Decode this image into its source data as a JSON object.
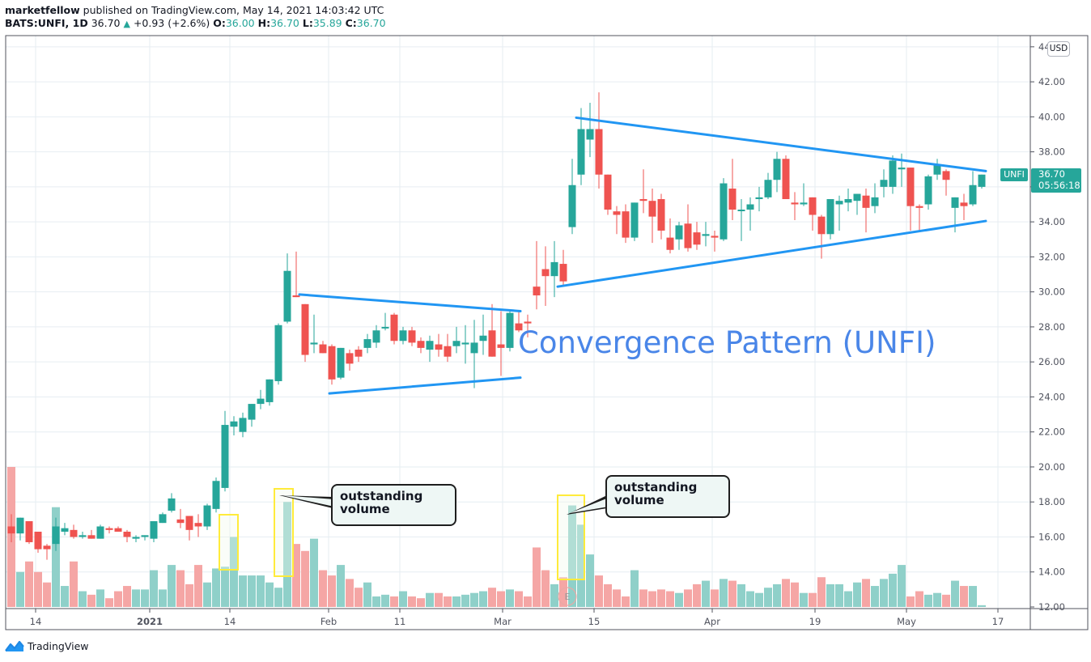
{
  "header": {
    "publisher": "marketfellow",
    "published_text": " published on TradingView.com, May 14, 2021 14:03:42 UTC",
    "symbol": "BATS:UNFI, 1D",
    "last": "36.70",
    "change_arrow": "▲",
    "change": "+0.93 (+2.6%)",
    "o_label": "O:",
    "o": "36.00",
    "h_label": "H:",
    "h": "36.70",
    "l_label": "L:",
    "l": "35.89",
    "c_label": "C:",
    "c": "36.70"
  },
  "price_axis": {
    "currency": "USD",
    "ticks": [
      "44",
      "42.00",
      "40.00",
      "38.00",
      "36.00",
      "34.00",
      "32.00",
      "30.00",
      "28.00",
      "26.00",
      "24.00",
      "22.00",
      "20.00",
      "18.00",
      "16.00",
      "14.00",
      "12.00"
    ],
    "last_price": "36.70",
    "countdown": "05:56:18",
    "ticker_label": "UNFI"
  },
  "time_axis": {
    "labels": [
      {
        "text": "14",
        "x": 44
      },
      {
        "text": "2021",
        "x": 185,
        "bold": true
      },
      {
        "text": "14",
        "x": 284
      },
      {
        "text": "Feb",
        "x": 406
      },
      {
        "text": "11",
        "x": 494
      },
      {
        "text": "Mar",
        "x": 621
      },
      {
        "text": "15",
        "x": 734
      },
      {
        "text": "Apr",
        "x": 880
      },
      {
        "text": "19",
        "x": 1007
      },
      {
        "text": "May",
        "x": 1120
      },
      {
        "text": "17",
        "x": 1233
      }
    ]
  },
  "annotations": {
    "title": "Convergence Pattern (UNFI)",
    "callout1": "outstanding volume",
    "callout2": "outstanding volume",
    "earnings_marker": "E"
  },
  "footer": {
    "brand": "TradingView"
  },
  "colors": {
    "up": "#26a69a",
    "down": "#ef5350",
    "up_volume": "#8fd0c9",
    "down_volume": "#f5a6a5",
    "trendline": "#2196f3",
    "annotation_text": "#4a86e8",
    "highlight_box": "#ffeb3b",
    "grid": "#e6edf2"
  },
  "chart_data": {
    "type": "candlestick",
    "title": "BATS:UNFI, 1D",
    "xlabel": "",
    "ylabel": "Price (USD)",
    "ylim": [
      12,
      44
    ],
    "grid": true,
    "x_ticks": [
      "14",
      "2021",
      "14",
      "Feb",
      "11",
      "Mar",
      "15",
      "Apr",
      "19",
      "May",
      "17"
    ],
    "y_ticks": [
      12,
      14,
      16,
      18,
      20,
      22,
      24,
      26,
      28,
      30,
      32,
      34,
      36,
      38,
      40,
      42
    ],
    "annotations": [
      "Convergence Pattern (UNFI)",
      "outstanding volume (late Jan)",
      "outstanding volume (mid Mar)",
      "E (earnings marker)"
    ],
    "candles": [
      {
        "x": 14,
        "o": 16.6,
        "h": 17.3,
        "l": 15.7,
        "c": 16.2,
        "v": 20.0
      },
      {
        "x": 25,
        "o": 16.2,
        "h": 17.1,
        "l": 15.8,
        "c": 17.1,
        "v": 14.0
      },
      {
        "x": 36,
        "o": 16.9,
        "h": 16.9,
        "l": 15.6,
        "c": 15.7,
        "v": 14.6
      },
      {
        "x": 47,
        "o": 16.3,
        "h": 16.3,
        "l": 15.1,
        "c": 15.3,
        "v": 14.0
      },
      {
        "x": 58,
        "o": 15.5,
        "h": 15.6,
        "l": 14.7,
        "c": 15.3,
        "v": 13.4
      },
      {
        "x": 69,
        "o": 15.6,
        "h": 17.1,
        "l": 15.2,
        "c": 16.6,
        "v": 17.7
      },
      {
        "x": 80,
        "o": 16.3,
        "h": 16.8,
        "l": 16.1,
        "c": 16.5,
        "v": 13.2
      },
      {
        "x": 91,
        "o": 16.4,
        "h": 16.7,
        "l": 15.9,
        "c": 16.0,
        "v": 14.6
      },
      {
        "x": 102,
        "o": 16.0,
        "h": 16.3,
        "l": 15.9,
        "c": 16.1,
        "v": 12.9
      },
      {
        "x": 113,
        "o": 16.1,
        "h": 16.4,
        "l": 16.0,
        "c": 15.9,
        "v": 12.7
      },
      {
        "x": 124,
        "o": 15.9,
        "h": 16.7,
        "l": 15.9,
        "c": 16.6,
        "v": 13.0
      },
      {
        "x": 135,
        "o": 16.5,
        "h": 16.6,
        "l": 16.2,
        "c": 16.4,
        "v": 12.5
      },
      {
        "x": 146,
        "o": 16.5,
        "h": 16.6,
        "l": 16.3,
        "c": 16.3,
        "v": 12.9
      },
      {
        "x": 157,
        "o": 16.3,
        "h": 16.4,
        "l": 15.7,
        "c": 16.0,
        "v": 13.2
      },
      {
        "x": 168,
        "o": 15.9,
        "h": 16.1,
        "l": 15.7,
        "c": 16.0,
        "v": 13.0
      },
      {
        "x": 179,
        "o": 16.0,
        "h": 16.1,
        "l": 15.8,
        "c": 16.1,
        "v": 13.0
      },
      {
        "x": 190,
        "o": 15.9,
        "h": 16.9,
        "l": 15.7,
        "c": 16.9,
        "v": 14.1
      },
      {
        "x": 201,
        "o": 16.8,
        "h": 17.4,
        "l": 16.8,
        "c": 17.3,
        "v": 13.0
      },
      {
        "x": 212,
        "o": 17.5,
        "h": 18.5,
        "l": 17.4,
        "c": 18.2,
        "v": 14.4
      },
      {
        "x": 223,
        "o": 17.0,
        "h": 17.6,
        "l": 16.5,
        "c": 16.8,
        "v": 14.1
      },
      {
        "x": 234,
        "o": 17.2,
        "h": 17.2,
        "l": 15.8,
        "c": 16.4,
        "v": 13.3
      },
      {
        "x": 245,
        "o": 16.8,
        "h": 17.3,
        "l": 16.0,
        "c": 16.6,
        "v": 14.4
      },
      {
        "x": 256,
        "o": 16.6,
        "h": 17.9,
        "l": 16.4,
        "c": 17.8,
        "v": 13.4
      },
      {
        "x": 267,
        "o": 17.6,
        "h": 19.4,
        "l": 17.4,
        "c": 19.2,
        "v": 14.2
      },
      {
        "x": 278,
        "o": 18.8,
        "h": 23.2,
        "l": 18.6,
        "c": 22.4,
        "v": 14.3
      },
      {
        "x": 289,
        "o": 22.3,
        "h": 22.9,
        "l": 21.8,
        "c": 22.6,
        "v": 16.0
      },
      {
        "x": 300,
        "o": 22.0,
        "h": 23.1,
        "l": 21.7,
        "c": 22.8,
        "v": 13.8
      },
      {
        "x": 311,
        "o": 22.7,
        "h": 23.6,
        "l": 22.3,
        "c": 23.6,
        "v": 13.8
      },
      {
        "x": 322,
        "o": 23.6,
        "h": 24.4,
        "l": 23.3,
        "c": 23.9,
        "v": 13.8
      },
      {
        "x": 333,
        "o": 23.7,
        "h": 24.0,
        "l": 23.5,
        "c": 25.0,
        "v": 13.4
      },
      {
        "x": 344,
        "o": 24.9,
        "h": 28.2,
        "l": 24.7,
        "c": 28.1,
        "v": 13.1
      },
      {
        "x": 355,
        "o": 28.3,
        "h": 32.2,
        "l": 28.2,
        "c": 31.2,
        "v": 18.0
      },
      {
        "x": 366,
        "o": 29.8,
        "h": 32.3,
        "l": 29.7,
        "c": 29.7,
        "v": 15.6
      },
      {
        "x": 377,
        "o": 29.3,
        "h": 29.3,
        "l": 26.0,
        "c": 26.4,
        "v": 15.2
      },
      {
        "x": 388,
        "o": 27.0,
        "h": 28.7,
        "l": 26.5,
        "c": 27.1,
        "v": 15.9
      },
      {
        "x": 399,
        "o": 27.0,
        "h": 27.2,
        "l": 26.5,
        "c": 26.5,
        "v": 14.1
      },
      {
        "x": 410,
        "o": 26.9,
        "h": 27.0,
        "l": 24.7,
        "c": 25.0,
        "v": 13.8
      },
      {
        "x": 421,
        "o": 25.1,
        "h": 26.8,
        "l": 25.0,
        "c": 26.8,
        "v": 14.4
      },
      {
        "x": 432,
        "o": 26.5,
        "h": 26.7,
        "l": 25.5,
        "c": 25.9,
        "v": 13.6
      },
      {
        "x": 443,
        "o": 26.7,
        "h": 26.9,
        "l": 26.0,
        "c": 26.3,
        "v": 13.1
      },
      {
        "x": 454,
        "o": 26.8,
        "h": 27.6,
        "l": 26.5,
        "c": 27.3,
        "v": 13.4
      },
      {
        "x": 465,
        "o": 27.1,
        "h": 28.1,
        "l": 26.8,
        "c": 27.8,
        "v": 12.6
      },
      {
        "x": 476,
        "o": 28.0,
        "h": 28.8,
        "l": 27.8,
        "c": 28.0,
        "v": 12.7
      },
      {
        "x": 487,
        "o": 28.7,
        "h": 28.8,
        "l": 27.0,
        "c": 27.2,
        "v": 12.6
      },
      {
        "x": 498,
        "o": 27.2,
        "h": 28.0,
        "l": 27.0,
        "c": 27.8,
        "v": 12.9
      },
      {
        "x": 509,
        "o": 27.8,
        "h": 28.0,
        "l": 26.9,
        "c": 27.1,
        "v": 12.6
      },
      {
        "x": 520,
        "o": 27.2,
        "h": 27.4,
        "l": 26.5,
        "c": 26.8,
        "v": 12.5
      },
      {
        "x": 531,
        "o": 26.7,
        "h": 27.5,
        "l": 26.0,
        "c": 27.2,
        "v": 12.8
      },
      {
        "x": 542,
        "o": 27.0,
        "h": 27.6,
        "l": 26.3,
        "c": 26.7,
        "v": 12.8
      },
      {
        "x": 553,
        "o": 26.9,
        "h": 27.6,
        "l": 26.0,
        "c": 26.3,
        "v": 12.6
      },
      {
        "x": 564,
        "o": 26.9,
        "h": 28.0,
        "l": 26.5,
        "c": 27.2,
        "v": 12.6
      },
      {
        "x": 575,
        "o": 27.0,
        "h": 28.1,
        "l": 25.9,
        "c": 27.1,
        "v": 12.7
      },
      {
        "x": 586,
        "o": 26.5,
        "h": 28.4,
        "l": 24.5,
        "c": 27.1,
        "v": 12.8
      },
      {
        "x": 597,
        "o": 27.2,
        "h": 28.7,
        "l": 26.4,
        "c": 27.5,
        "v": 12.9
      },
      {
        "x": 608,
        "o": 27.8,
        "h": 29.3,
        "l": 26.3,
        "c": 26.3,
        "v": 13.1
      },
      {
        "x": 619,
        "o": 27.0,
        "h": 28.9,
        "l": 25.2,
        "c": 26.8,
        "v": 12.9
      },
      {
        "x": 630,
        "o": 26.8,
        "h": 29.0,
        "l": 26.6,
        "c": 28.8,
        "v": 13.0
      },
      {
        "x": 641,
        "o": 28.2,
        "h": 28.9,
        "l": 27.7,
        "c": 27.8,
        "v": 12.9
      },
      {
        "x": 652,
        "o": 28.3,
        "h": 28.7,
        "l": 27.4,
        "c": 28.2,
        "v": 12.6
      },
      {
        "x": 663,
        "o": 30.3,
        "h": 32.9,
        "l": 29.0,
        "c": 29.8,
        "v": 15.4
      },
      {
        "x": 674,
        "o": 31.3,
        "h": 32.6,
        "l": 29.2,
        "c": 30.9,
        "v": 14.1
      },
      {
        "x": 685,
        "o": 30.9,
        "h": 32.9,
        "l": 29.7,
        "c": 31.7,
        "v": 13.3
      },
      {
        "x": 696,
        "o": 31.6,
        "h": 32.4,
        "l": 30.4,
        "c": 30.6,
        "v": 13.7
      },
      {
        "x": 707,
        "o": 33.7,
        "h": 37.6,
        "l": 33.3,
        "c": 36.1,
        "v": 17.8
      },
      {
        "x": 718,
        "o": 36.7,
        "h": 40.5,
        "l": 36.1,
        "c": 39.3,
        "v": 16.7
      },
      {
        "x": 729,
        "o": 38.7,
        "h": 40.8,
        "l": 37.7,
        "c": 39.3,
        "v": 15.0
      },
      {
        "x": 740,
        "o": 39.3,
        "h": 41.4,
        "l": 35.9,
        "c": 36.7,
        "v": 13.8
      },
      {
        "x": 751,
        "o": 36.7,
        "h": 35.3,
        "l": 34.4,
        "c": 34.7,
        "v": 13.3
      },
      {
        "x": 762,
        "o": 34.6,
        "h": 34.9,
        "l": 33.3,
        "c": 34.4,
        "v": 13.0
      },
      {
        "x": 773,
        "o": 34.6,
        "h": 35.0,
        "l": 32.8,
        "c": 33.1,
        "v": 12.6
      },
      {
        "x": 784,
        "o": 33.1,
        "h": 34.9,
        "l": 32.9,
        "c": 35.1,
        "v": 14.1
      },
      {
        "x": 795,
        "o": 35.3,
        "h": 37.0,
        "l": 34.5,
        "c": 35.2,
        "v": 13.0
      },
      {
        "x": 806,
        "o": 35.2,
        "h": 35.9,
        "l": 32.8,
        "c": 34.3,
        "v": 12.9
      },
      {
        "x": 817,
        "o": 35.3,
        "h": 35.6,
        "l": 33.0,
        "c": 33.5,
        "v": 13.0
      },
      {
        "x": 828,
        "o": 33.1,
        "h": 34.2,
        "l": 32.2,
        "c": 32.4,
        "v": 12.9
      },
      {
        "x": 839,
        "o": 33.0,
        "h": 34.0,
        "l": 32.4,
        "c": 33.8,
        "v": 12.8
      },
      {
        "x": 850,
        "o": 33.9,
        "h": 35.0,
        "l": 32.3,
        "c": 32.5,
        "v": 13.0
      },
      {
        "x": 861,
        "o": 33.4,
        "h": 34.0,
        "l": 32.4,
        "c": 32.7,
        "v": 13.3
      },
      {
        "x": 872,
        "o": 33.2,
        "h": 34.0,
        "l": 32.6,
        "c": 33.3,
        "v": 13.5
      },
      {
        "x": 883,
        "o": 33.2,
        "h": 33.5,
        "l": 32.3,
        "c": 33.1,
        "v": 13.0
      },
      {
        "x": 894,
        "o": 33.0,
        "h": 36.5,
        "l": 32.9,
        "c": 36.2,
        "v": 13.6
      },
      {
        "x": 905,
        "o": 35.9,
        "h": 37.6,
        "l": 34.1,
        "c": 34.7,
        "v": 13.5
      },
      {
        "x": 916,
        "o": 34.7,
        "h": 35.3,
        "l": 32.9,
        "c": 34.7,
        "v": 13.3
      },
      {
        "x": 927,
        "o": 34.7,
        "h": 35.4,
        "l": 33.5,
        "c": 35.0,
        "v": 12.9
      },
      {
        "x": 938,
        "o": 35.3,
        "h": 36.0,
        "l": 34.6,
        "c": 35.4,
        "v": 12.8
      },
      {
        "x": 949,
        "o": 35.4,
        "h": 36.8,
        "l": 35.3,
        "c": 36.4,
        "v": 13.1
      },
      {
        "x": 960,
        "o": 36.4,
        "h": 38.0,
        "l": 35.7,
        "c": 37.6,
        "v": 13.3
      },
      {
        "x": 971,
        "o": 37.6,
        "h": 37.8,
        "l": 35.8,
        "c": 35.3,
        "v": 13.6
      },
      {
        "x": 982,
        "o": 35.1,
        "h": 35.7,
        "l": 34.1,
        "c": 35.0,
        "v": 13.4
      },
      {
        "x": 993,
        "o": 35.0,
        "h": 36.2,
        "l": 34.9,
        "c": 35.1,
        "v": 12.8
      },
      {
        "x": 1004,
        "o": 35.4,
        "h": 35.4,
        "l": 33.5,
        "c": 34.4,
        "v": 12.8
      },
      {
        "x": 1015,
        "o": 34.3,
        "h": 34.4,
        "l": 31.9,
        "c": 33.3,
        "v": 13.7
      },
      {
        "x": 1026,
        "o": 33.3,
        "h": 35.3,
        "l": 33.0,
        "c": 35.3,
        "v": 13.3
      },
      {
        "x": 1037,
        "o": 35.0,
        "h": 35.5,
        "l": 33.5,
        "c": 35.2,
        "v": 13.3
      },
      {
        "x": 1048,
        "o": 35.1,
        "h": 35.9,
        "l": 34.6,
        "c": 35.3,
        "v": 12.9
      },
      {
        "x": 1059,
        "o": 35.2,
        "h": 35.6,
        "l": 34.4,
        "c": 35.6,
        "v": 13.4
      },
      {
        "x": 1070,
        "o": 35.5,
        "h": 35.9,
        "l": 33.4,
        "c": 34.8,
        "v": 13.6
      },
      {
        "x": 1081,
        "o": 34.9,
        "h": 36.2,
        "l": 34.5,
        "c": 35.4,
        "v": 13.2
      },
      {
        "x": 1092,
        "o": 36.0,
        "h": 37.0,
        "l": 35.4,
        "c": 36.4,
        "v": 13.6
      },
      {
        "x": 1103,
        "o": 36.0,
        "h": 37.8,
        "l": 35.6,
        "c": 37.5,
        "v": 13.9
      },
      {
        "x": 1114,
        "o": 37.0,
        "h": 37.9,
        "l": 36.0,
        "c": 37.1,
        "v": 14.4
      },
      {
        "x": 1125,
        "o": 37.1,
        "h": 37.1,
        "l": 33.5,
        "c": 34.9,
        "v": 12.6
      },
      {
        "x": 1136,
        "o": 34.9,
        "h": 35.0,
        "l": 33.5,
        "c": 34.8,
        "v": 12.9
      },
      {
        "x": 1147,
        "o": 35.0,
        "h": 36.7,
        "l": 34.7,
        "c": 36.6,
        "v": 12.7
      },
      {
        "x": 1158,
        "o": 36.7,
        "h": 37.6,
        "l": 36.4,
        "c": 37.3,
        "v": 12.8
      },
      {
        "x": 1169,
        "o": 36.9,
        "h": 37.0,
        "l": 35.5,
        "c": 36.4,
        "v": 12.7
      },
      {
        "x": 1180,
        "o": 34.8,
        "h": 35.1,
        "l": 33.4,
        "c": 35.4,
        "v": 13.5
      },
      {
        "x": 1191,
        "o": 35.1,
        "h": 35.6,
        "l": 34.1,
        "c": 34.9,
        "v": 13.2
      },
      {
        "x": 1202,
        "o": 35.0,
        "h": 36.9,
        "l": 34.9,
        "c": 36.1,
        "v": 13.2
      },
      {
        "x": 1213,
        "o": 36.0,
        "h": 36.7,
        "l": 35.9,
        "c": 36.7,
        "v": 12.1
      }
    ],
    "trendlines": [
      {
        "name": "Jan-Mar upper",
        "x1": 370,
        "y1": 29.85,
        "x2": 643,
        "y2": 28.9
      },
      {
        "name": "Jan-Mar lower",
        "x1": 407,
        "y1": 24.2,
        "x2": 643,
        "y2": 25.1
      },
      {
        "name": "Mar-May upper",
        "x1": 712,
        "y1": 39.95,
        "x2": 1218,
        "y2": 36.9
      },
      {
        "name": "Mar-May lower",
        "x1": 689,
        "y1": 30.3,
        "x2": 1218,
        "y2": 34.05
      }
    ],
    "volume_highlight_boxes": [
      {
        "x": 271,
        "y": 636,
        "w": 23,
        "h": 68
      },
      {
        "x": 339,
        "y": 604,
        "w": 23,
        "h": 108
      },
      {
        "x": 689,
        "y": 612,
        "w": 33,
        "h": 104
      }
    ]
  }
}
